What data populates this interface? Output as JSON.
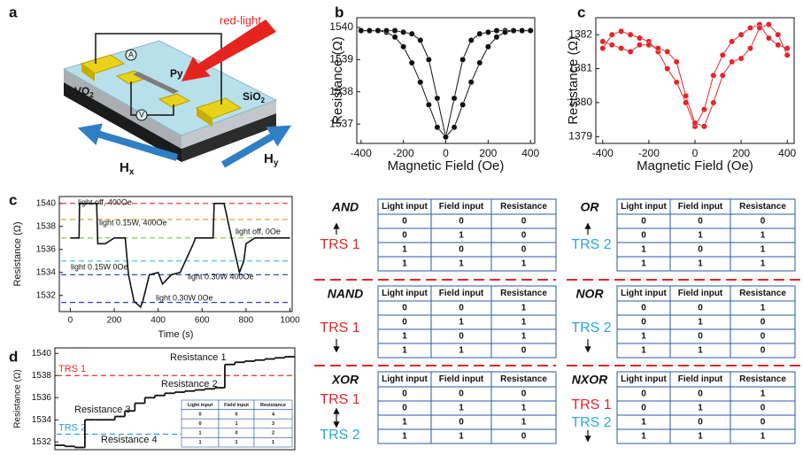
{
  "diagram": {
    "panel": "a",
    "red_light": "red-light",
    "ammeter": "A",
    "py": "Py",
    "vo2": {
      "main": "VO",
      "sub": "2"
    },
    "voltmeter": "V",
    "sio2": {
      "main": "SiO",
      "sub": "2"
    },
    "hx": {
      "main": "H",
      "sub": "x"
    },
    "hy": {
      "main": "H",
      "sub": "y"
    }
  },
  "chart_data": [
    {
      "type": "line",
      "panel": "b",
      "xlabel": "Magnetic Field (Oe)",
      "ylabel": "Resistance (Ω)",
      "xlim": [
        -420,
        420
      ],
      "ylim": [
        1536.4,
        1540.3
      ],
      "xticks": [
        -400,
        -200,
        0,
        200,
        400
      ],
      "yticks": [
        1537,
        1538,
        1539,
        1540
      ],
      "x": [
        -400,
        -360,
        -320,
        -280,
        -240,
        -200,
        -160,
        -120,
        -80,
        -40,
        0,
        40,
        80,
        120,
        160,
        200,
        240,
        280,
        320,
        360,
        400
      ],
      "series": [
        {
          "color": "#111111",
          "values": [
            1539.9,
            1539.9,
            1539.9,
            1539.85,
            1539.7,
            1539.4,
            1538.9,
            1538.3,
            1537.6,
            1536.9,
            1536.6,
            1537.8,
            1539.0,
            1539.6,
            1539.8,
            1539.85,
            1539.9,
            1539.9,
            1539.9,
            1539.9,
            1539.9
          ]
        },
        {
          "color": "#111111",
          "values": [
            1539.9,
            1539.9,
            1539.9,
            1539.9,
            1539.9,
            1539.85,
            1539.8,
            1539.6,
            1539.0,
            1537.8,
            1536.6,
            1536.9,
            1537.6,
            1538.3,
            1538.9,
            1539.4,
            1539.7,
            1539.85,
            1539.9,
            1539.9,
            1539.9
          ]
        }
      ]
    },
    {
      "type": "line",
      "panel": "c",
      "xlabel": "Magnetic Field (Oe)",
      "ylabel": "Resistance (Ω)",
      "xlim": [
        -430,
        430
      ],
      "ylim": [
        1378.8,
        1382.5
      ],
      "xticks": [
        -400,
        -200,
        0,
        200,
        400
      ],
      "yticks": [
        1379,
        1380,
        1381,
        1382
      ],
      "x": [
        -400,
        -360,
        -320,
        -280,
        -240,
        -200,
        -160,
        -120,
        -80,
        -40,
        0,
        40,
        80,
        120,
        160,
        200,
        240,
        280,
        320,
        360,
        400
      ],
      "series": [
        {
          "color": "#e3262b",
          "values": [
            1381.6,
            1382.0,
            1382.1,
            1382.0,
            1381.9,
            1381.8,
            1381.5,
            1381.0,
            1380.6,
            1380.0,
            1379.3,
            1379.8,
            1380.8,
            1381.4,
            1381.8,
            1382.0,
            1382.2,
            1382.3,
            1381.9,
            1381.7,
            1381.6
          ]
        },
        {
          "color": "#e3262b",
          "values": [
            1381.8,
            1381.7,
            1381.6,
            1381.5,
            1381.7,
            1381.7,
            1381.6,
            1381.5,
            1381.2,
            1380.2,
            1379.4,
            1379.3,
            1380.0,
            1380.8,
            1381.2,
            1381.3,
            1381.6,
            1382.2,
            1382.3,
            1382.0,
            1381.4
          ]
        }
      ]
    },
    {
      "type": "step",
      "panel": "c",
      "xlabel": "Time (s)",
      "ylabel": "Resistance (Ω)",
      "xlim": [
        -50,
        1010
      ],
      "ylim": [
        1530.6,
        1540.6
      ],
      "xticks": [
        0,
        200,
        400,
        600,
        800,
        1000
      ],
      "yticks": [
        1532,
        1534,
        1536,
        1538,
        1540
      ],
      "x": [
        0,
        40,
        42,
        120,
        125,
        160,
        200,
        250,
        265,
        290,
        320,
        330,
        360,
        400,
        420,
        460,
        500,
        560,
        570,
        620,
        650,
        655,
        700,
        740,
        770,
        790,
        800,
        840,
        1000
      ],
      "series": [
        {
          "color": "#111111",
          "values": [
            1537,
            1537,
            1540,
            1540,
            1536.5,
            1536.5,
            1537,
            1537,
            1533.8,
            1531.5,
            1531,
            1531.5,
            1533.8,
            1534,
            1533,
            1533.8,
            1534,
            1536.5,
            1537,
            1537,
            1537,
            1540,
            1540,
            1536.5,
            1534,
            1535,
            1536.5,
            1537,
            1537
          ]
        }
      ],
      "reference_lines": [
        {
          "value": 1540,
          "color": "#e0302a"
        },
        {
          "value": 1538.6,
          "color": "#e8a040"
        },
        {
          "value": 1537,
          "color": "#8fbf3f"
        },
        {
          "value": 1535,
          "color": "#39b6e0"
        },
        {
          "value": 1533.8,
          "color": "#3050c0"
        },
        {
          "value": 1531.4,
          "color": "#3040b0"
        }
      ],
      "annotations": [
        "light off, 400Oe",
        "light 0.15W, 400Oe",
        "light off, 0Oe",
        "light 0.15W 0Oe",
        "light 0.30W 400Oe",
        "light 0.30W 0Oe"
      ]
    },
    {
      "type": "step",
      "panel": "d",
      "ylabel": "Resistance (Ω)",
      "ylim": [
        1531.3,
        1540.5
      ],
      "yticks": [
        1532,
        1534,
        1536,
        1538,
        1540
      ],
      "series": [
        {
          "color": "#111111",
          "values": [
            1531.7,
            1531.6,
            1531.5,
            1534,
            1534,
            1534,
            1534.3,
            1534.8,
            1535.5,
            1536,
            1536.2,
            1536.4,
            1536.5,
            1536.6,
            1536.7,
            1536.8,
            1536.9,
            1539,
            1539.2,
            1539.3,
            1539.4,
            1539.5,
            1539.6,
            1539.7
          ]
        }
      ],
      "reference_lines": [
        {
          "value": 1538,
          "color": "#e0302a",
          "label": "TRS 1"
        },
        {
          "value": 1532.7,
          "color": "#2a9fd6",
          "label": "TRS 2"
        }
      ],
      "annotations": [
        "Resistance 1",
        "Resistance 2",
        "Resistance 3",
        "Resistance 4"
      ],
      "inset_table": {
        "header": [
          "Light input",
          "Field input",
          "Resistance"
        ],
        "rows": [
          [
            0,
            0,
            4
          ],
          [
            0,
            1,
            3
          ],
          [
            1,
            0,
            2
          ],
          [
            1,
            1,
            1
          ]
        ]
      }
    }
  ],
  "logic_tables": [
    {
      "gate": "AND",
      "trs": [
        {
          "text": "TRS 1",
          "color": "#e3262b"
        }
      ],
      "header": [
        "Light input",
        "Field input",
        "Resistance"
      ],
      "rows": [
        [
          0,
          0,
          0
        ],
        [
          0,
          1,
          0
        ],
        [
          1,
          0,
          0
        ],
        [
          1,
          1,
          1
        ]
      ]
    },
    {
      "gate": "OR",
      "trs": [
        {
          "text": "TRS 2",
          "color": "#2aa6d8"
        }
      ],
      "header": [
        "Light input",
        "Field input",
        "Resistance"
      ],
      "rows": [
        [
          0,
          0,
          0
        ],
        [
          0,
          1,
          1
        ],
        [
          1,
          0,
          1
        ],
        [
          1,
          1,
          1
        ]
      ]
    },
    {
      "gate": "NAND",
      "trs": [
        {
          "text": "TRS 1",
          "color": "#e3262b"
        }
      ],
      "header": [
        "Light input",
        "Field input",
        "Resistance"
      ],
      "rows": [
        [
          0,
          0,
          1
        ],
        [
          0,
          1,
          1
        ],
        [
          1,
          0,
          1
        ],
        [
          1,
          1,
          0
        ]
      ]
    },
    {
      "gate": "NOR",
      "trs": [
        {
          "text": "TRS 2",
          "color": "#2aa6d8"
        }
      ],
      "header": [
        "Light input",
        "Field input",
        "Resistance"
      ],
      "rows": [
        [
          0,
          0,
          1
        ],
        [
          0,
          1,
          0
        ],
        [
          1,
          0,
          0
        ],
        [
          1,
          1,
          0
        ]
      ]
    },
    {
      "gate": "XOR",
      "trs": [
        {
          "text": "TRS 1",
          "color": "#e3262b"
        },
        {
          "text": "TRS 2",
          "color": "#2aa6d8"
        }
      ],
      "header": [
        "Light input",
        "Field input",
        "Resistance"
      ],
      "rows": [
        [
          0,
          0,
          0
        ],
        [
          0,
          1,
          1
        ],
        [
          1,
          0,
          1
        ],
        [
          1,
          1,
          0
        ]
      ]
    },
    {
      "gate": "NXOR",
      "trs": [
        {
          "text": "TRS 1",
          "color": "#e3262b"
        },
        {
          "text": "TRS 2",
          "color": "#2aa6d8"
        }
      ],
      "header": [
        "Light input",
        "Field input",
        "Resistance"
      ],
      "rows": [
        [
          0,
          0,
          1
        ],
        [
          0,
          1,
          0
        ],
        [
          1,
          0,
          0
        ],
        [
          1,
          1,
          1
        ]
      ]
    }
  ]
}
